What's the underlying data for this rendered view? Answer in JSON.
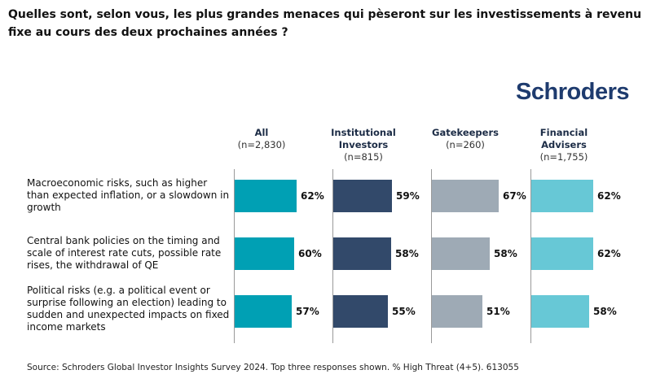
{
  "title": "Quelles sont, selon vous, les plus grandes menaces qui pèseront sur les investissements à revenu fixe au cours des deux prochaines années ?",
  "logo_text": "Schroders",
  "source": "Source: Schroders Global Investor Insights Survey 2024. Top three responses shown. % High Threat (4+5). 613055",
  "chart_data": {
    "type": "bar",
    "orientation": "horizontal",
    "title": "Quelles sont, selon vous, les plus grandes menaces qui pèseront sur les investissements à revenu fixe au cours des deux prochaines années ?",
    "unit": "%",
    "xlim": [
      0,
      100
    ],
    "categories": [
      "Macroeconomic risks, such as higher than expected inflation, or a slowdown in growth",
      "Central bank policies on the timing and scale of interest rate cuts, possible rate rises, the withdrawal of QE",
      "Political risks (e.g. a political event or surprise following an election) leading to sudden and unexpected impacts on fixed income markets"
    ],
    "series": [
      {
        "name": "All",
        "n": "(n=2,830)",
        "values": [
          62,
          60,
          57
        ],
        "color": "#00a0b4",
        "labels": [
          "62%",
          "60%",
          "57%"
        ]
      },
      {
        "name": "Institutional Investors",
        "n": "(n=815)",
        "values": [
          59,
          58,
          55
        ],
        "color": "#32496a",
        "labels": [
          "59%",
          "58%",
          "55%"
        ]
      },
      {
        "name": "Gatekeepers",
        "n": "(n=260)",
        "values": [
          67,
          58,
          51
        ],
        "color": "#9eaab5",
        "labels": [
          "67%",
          "58%",
          "51%"
        ]
      },
      {
        "name": "Financial Advisers",
        "n": "(n=1,755)",
        "values": [
          62,
          62,
          58
        ],
        "color": "#67c8d6",
        "labels": [
          "62%",
          "62%",
          "58%"
        ]
      }
    ]
  }
}
